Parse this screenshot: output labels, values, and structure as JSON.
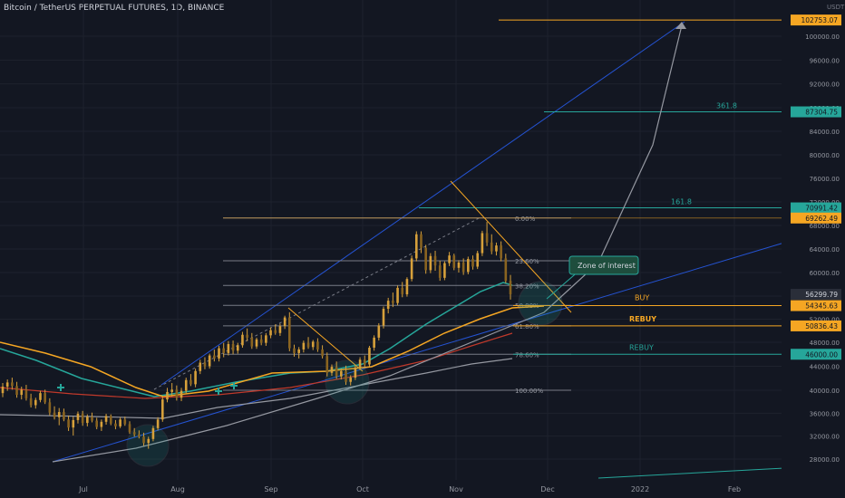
{
  "header": {
    "title": "Bitcoin / TetherUS PERPETUAL FUTURES, 1D, BINANCE",
    "currency": "USDT"
  },
  "colors": {
    "background": "#131722",
    "up": "#d6a03b",
    "down": "#d6a03b",
    "ema_green": "#26a69a",
    "ema_orange": "#f5a623",
    "ma_red": "#c0392b",
    "ma_grey": "#9598a1",
    "channel_blue": "#2962ff",
    "fib": "#787b86",
    "teal_level": "#26a69a",
    "orange_level": "#f5a623"
  },
  "chart_data": {
    "type": "candlestick",
    "x_ticks": [
      "Jul",
      "Aug",
      "Sep",
      "Oct",
      "Nov",
      "Dec",
      "2022",
      "Feb"
    ],
    "y_ticks": [
      28000,
      32000,
      36000,
      40000,
      44000,
      48000,
      52000,
      56000,
      60000,
      64000,
      68000,
      72000,
      76000,
      80000,
      84000,
      88000,
      92000,
      96000,
      100000
    ],
    "y_range": [
      26000,
      104000
    ],
    "price_labels": [
      {
        "value": 102753.07,
        "text": "102753.07",
        "color": "#f5a623",
        "kind": "level"
      },
      {
        "value": 87304.75,
        "text": "87304.75",
        "color": "#26a69a",
        "kind": "level"
      },
      {
        "value": 70991.42,
        "text": "70991.42",
        "color": "#26a69a",
        "kind": "level"
      },
      {
        "value": 69262.49,
        "text": "69262.49",
        "color": "#f5a623",
        "kind": "level"
      },
      {
        "value": 56299.79,
        "text": "56299.79",
        "color": "#2a2e39",
        "kind": "price"
      },
      {
        "value": 54345.63,
        "text": "54345.63",
        "color": "#f5a623",
        "kind": "level"
      },
      {
        "value": 50836.43,
        "text": "50836.43",
        "color": "#f5a623",
        "kind": "level"
      },
      {
        "value": 46000,
        "text": "46000.00",
        "color": "#26a69a",
        "kind": "level"
      }
    ],
    "fib_levels": [
      {
        "label": "0.00%",
        "value": 69262
      },
      {
        "label": "23.60%",
        "value": 62000
      },
      {
        "label": "38.20%",
        "value": 57800
      },
      {
        "label": "50.00%",
        "value": 54400
      },
      {
        "label": "61.80%",
        "value": 50836
      },
      {
        "label": "78.60%",
        "value": 46000
      },
      {
        "label": "100.00%",
        "value": 40000
      }
    ],
    "ext_levels": [
      {
        "label": "361.8",
        "value": 87304
      },
      {
        "label": "161.8",
        "value": 70991
      }
    ],
    "annotations": [
      {
        "text": "BUY",
        "value": 54345
      },
      {
        "text": "REBUY",
        "value": 50836
      },
      {
        "text": "REBUY",
        "value": 46000
      },
      {
        "text": "Zone of interest"
      }
    ],
    "candles": [
      [
        39500,
        41200,
        38800,
        40600
      ],
      [
        40600,
        41800,
        39900,
        41300
      ],
      [
        41300,
        42100,
        40100,
        40700
      ],
      [
        40700,
        41400,
        38700,
        39200
      ],
      [
        39200,
        40600,
        38400,
        40100
      ],
      [
        40100,
        40900,
        38200,
        38600
      ],
      [
        38600,
        39400,
        37000,
        37400
      ],
      [
        37400,
        38700,
        36800,
        38300
      ],
      [
        38300,
        39900,
        37900,
        39500
      ],
      [
        39500,
        40100,
        37600,
        37900
      ],
      [
        37900,
        38600,
        35600,
        36100
      ],
      [
        36100,
        37200,
        34900,
        35300
      ],
      [
        35300,
        36900,
        33900,
        36200
      ],
      [
        36200,
        36800,
        34600,
        34900
      ],
      [
        34900,
        35600,
        32900,
        33500
      ],
      [
        33500,
        35400,
        32100,
        34800
      ],
      [
        34800,
        36300,
        34200,
        35900
      ],
      [
        35900,
        36400,
        33800,
        34300
      ],
      [
        34300,
        35800,
        33700,
        35400
      ],
      [
        35400,
        36100,
        34400,
        34700
      ],
      [
        34700,
        35200,
        33200,
        33600
      ],
      [
        33600,
        34900,
        32900,
        34500
      ],
      [
        34500,
        35900,
        34000,
        35500
      ],
      [
        35500,
        35800,
        33900,
        34200
      ],
      [
        34200,
        34800,
        33200,
        33700
      ],
      [
        33700,
        35300,
        33400,
        34900
      ],
      [
        34900,
        35400,
        33800,
        34100
      ],
      [
        34100,
        34600,
        32400,
        32700
      ],
      [
        32700,
        33400,
        31900,
        32300
      ],
      [
        32300,
        33000,
        31600,
        31900
      ],
      [
        31900,
        32600,
        30300,
        30800
      ],
      [
        30800,
        31900,
        29800,
        31500
      ],
      [
        31500,
        33800,
        31100,
        33400
      ],
      [
        33400,
        35300,
        33000,
        34900
      ],
      [
        34900,
        38900,
        34500,
        38400
      ],
      [
        38400,
        40400,
        37900,
        39700
      ],
      [
        39700,
        41200,
        38900,
        40100
      ],
      [
        40100,
        40800,
        38200,
        38700
      ],
      [
        38700,
        40400,
        38100,
        39900
      ],
      [
        39900,
        42100,
        39500,
        41700
      ],
      [
        41700,
        42700,
        40700,
        41000
      ],
      [
        41000,
        43600,
        40500,
        43200
      ],
      [
        43200,
        45100,
        42700,
        44600
      ],
      [
        44600,
        45500,
        43500,
        44000
      ],
      [
        44000,
        46100,
        43600,
        45800
      ],
      [
        45800,
        46800,
        44800,
        45300
      ],
      [
        45300,
        47400,
        44800,
        47000
      ],
      [
        47000,
        47900,
        45500,
        46200
      ],
      [
        46200,
        48200,
        45800,
        47700
      ],
      [
        47700,
        48300,
        46000,
        46600
      ],
      [
        46600,
        47900,
        46100,
        47500
      ],
      [
        47500,
        49800,
        47100,
        49300
      ],
      [
        49300,
        50400,
        48200,
        48800
      ],
      [
        48800,
        49600,
        46900,
        47300
      ],
      [
        47300,
        48800,
        46900,
        48500
      ],
      [
        48500,
        49300,
        47500,
        47900
      ],
      [
        47900,
        49600,
        47400,
        49200
      ],
      [
        49200,
        50600,
        48700,
        50100
      ],
      [
        50100,
        51100,
        49300,
        49600
      ],
      [
        49600,
        51200,
        49100,
        50800
      ],
      [
        50800,
        52600,
        50300,
        52300
      ],
      [
        52300,
        53200,
        46500,
        47000
      ],
      [
        47000,
        47600,
        45600,
        46200
      ],
      [
        46200,
        47200,
        45300,
        46800
      ],
      [
        46800,
        48300,
        46300,
        47900
      ],
      [
        47900,
        48900,
        46900,
        47200
      ],
      [
        47200,
        48400,
        46700,
        48100
      ],
      [
        48100,
        48700,
        46400,
        46800
      ],
      [
        46800,
        47500,
        45300,
        45700
      ],
      [
        45700,
        46300,
        42300,
        42900
      ],
      [
        42900,
        44300,
        42400,
        43900
      ],
      [
        43900,
        44800,
        41900,
        42300
      ],
      [
        42300,
        43600,
        41800,
        43200
      ],
      [
        43200,
        44100,
        40900,
        41400
      ],
      [
        41400,
        42500,
        40800,
        42100
      ],
      [
        42100,
        44200,
        41700,
        43800
      ],
      [
        43800,
        45500,
        43400,
        45100
      ],
      [
        45100,
        45800,
        43800,
        44300
      ],
      [
        44300,
        47400,
        43900,
        47100
      ],
      [
        47100,
        49200,
        46600,
        48800
      ],
      [
        48800,
        51300,
        48300,
        50900
      ],
      [
        50900,
        54200,
        50400,
        53800
      ],
      [
        53800,
        55700,
        53000,
        55200
      ],
      [
        55200,
        56600,
        54100,
        54800
      ],
      [
        54800,
        57800,
        54400,
        57400
      ],
      [
        57400,
        58400,
        55800,
        56300
      ],
      [
        56300,
        59200,
        55900,
        58900
      ],
      [
        58900,
        62900,
        58500,
        62400
      ],
      [
        62400,
        67000,
        61900,
        66500
      ],
      [
        66500,
        67000,
        63300,
        64200
      ],
      [
        64200,
        64700,
        59800,
        60400
      ],
      [
        60400,
        63300,
        59900,
        62800
      ],
      [
        62800,
        63700,
        60300,
        61200
      ],
      [
        61200,
        62000,
        58600,
        59100
      ],
      [
        59100,
        61900,
        58700,
        61600
      ],
      [
        61600,
        63500,
        61100,
        62900
      ],
      [
        62900,
        63200,
        60400,
        60800
      ],
      [
        60800,
        62100,
        60000,
        61700
      ],
      [
        61700,
        62400,
        59600,
        60100
      ],
      [
        60100,
        62700,
        59700,
        62300
      ],
      [
        62300,
        62900,
        60500,
        61000
      ],
      [
        61000,
        63700,
        60600,
        63300
      ],
      [
        63300,
        67100,
        62800,
        66700
      ],
      [
        66700,
        68600,
        64500,
        65100
      ],
      [
        65100,
        66500,
        63100,
        63600
      ],
      [
        63600,
        65100,
        62900,
        64600
      ],
      [
        64600,
        65300,
        61900,
        62400
      ],
      [
        62400,
        63200,
        58200,
        58600
      ],
      [
        58600,
        59600,
        55400,
        56300
      ]
    ]
  }
}
